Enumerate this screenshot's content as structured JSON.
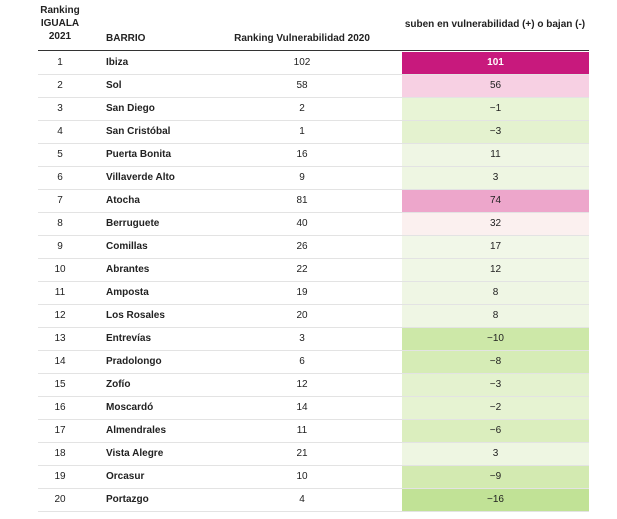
{
  "headers": {
    "rank": "Ranking IGUALA 2021",
    "barrio": "BARRIO",
    "ranking_2020": "Ranking Vulnerabilidad 2020",
    "change": "suben en vulnerabilidad (+) o bajan (-)"
  },
  "chart_data": {
    "type": "table",
    "columns": [
      "Ranking IGUALA 2021",
      "BARRIO",
      "Ranking Vulnerabilidad 2020",
      "suben en vulnerabilidad (+) o bajan (-)"
    ],
    "rows": [
      {
        "rank": "1",
        "barrio": "Ibiza",
        "ranking_2020": "102",
        "change": "101",
        "color": "#c8197d"
      },
      {
        "rank": "2",
        "barrio": "Sol",
        "ranking_2020": "58",
        "change": "56",
        "color": "#f7d0e3"
      },
      {
        "rank": "3",
        "barrio": "San Diego",
        "ranking_2020": "2",
        "change": "-1",
        "color": "#e8f4d6"
      },
      {
        "rank": "4",
        "barrio": "San Cristóbal",
        "ranking_2020": "1",
        "change": "-3",
        "color": "#e4f2cf"
      },
      {
        "rank": "5",
        "barrio": "Puerta Bonita",
        "ranking_2020": "16",
        "change": "11",
        "color": "#eff6e4"
      },
      {
        "rank": "6",
        "barrio": "Villaverde Alto",
        "ranking_2020": "9",
        "change": "3",
        "color": "#eef6e2"
      },
      {
        "rank": "7",
        "barrio": "Atocha",
        "ranking_2020": "81",
        "change": "74",
        "color": "#eda6cb"
      },
      {
        "rank": "8",
        "barrio": "Berruguete",
        "ranking_2020": "40",
        "change": "32",
        "color": "#fbf0ef"
      },
      {
        "rank": "9",
        "barrio": "Comillas",
        "ranking_2020": "26",
        "change": "17",
        "color": "#f1f7e8"
      },
      {
        "rank": "10",
        "barrio": "Abrantes",
        "ranking_2020": "22",
        "change": "12",
        "color": "#f0f7e6"
      },
      {
        "rank": "11",
        "barrio": "Amposta",
        "ranking_2020": "19",
        "change": "8",
        "color": "#eff6e4"
      },
      {
        "rank": "12",
        "barrio": "Los Rosales",
        "ranking_2020": "20",
        "change": "8",
        "color": "#eff6e4"
      },
      {
        "rank": "13",
        "barrio": "Entrevías",
        "ranking_2020": "3",
        "change": "-10",
        "color": "#cde8a8"
      },
      {
        "rank": "14",
        "barrio": "Pradolongo",
        "ranking_2020": "6",
        "change": "-8",
        "color": "#d6ecb6"
      },
      {
        "rank": "15",
        "barrio": "Zofío",
        "ranking_2020": "12",
        "change": "-3",
        "color": "#e4f2cf"
      },
      {
        "rank": "16",
        "barrio": "Moscardó",
        "ranking_2020": "14",
        "change": "-2",
        "color": "#e6f3d2"
      },
      {
        "rank": "17",
        "barrio": "Almendrales",
        "ranking_2020": "11",
        "change": "-6",
        "color": "#dbeebe"
      },
      {
        "rank": "18",
        "barrio": "Vista Alegre",
        "ranking_2020": "21",
        "change": "3",
        "color": "#eef6e2"
      },
      {
        "rank": "19",
        "barrio": "Orcasur",
        "ranking_2020": "10",
        "change": "-9",
        "color": "#d3eab1"
      },
      {
        "rank": "20",
        "barrio": "Portazgo",
        "ranking_2020": "4",
        "change": "-16",
        "color": "#c1e296"
      }
    ]
  }
}
